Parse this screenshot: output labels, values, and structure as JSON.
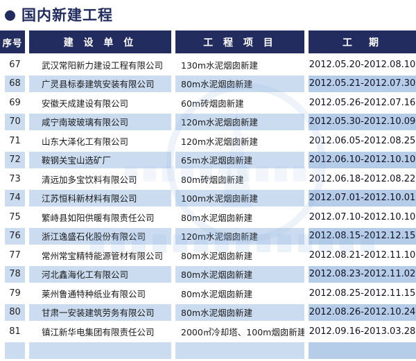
{
  "page": {
    "title": "国内新建工程"
  },
  "table": {
    "headers": [
      "序号",
      "建 设 单 位",
      "工 程 项 目",
      "工　期"
    ],
    "rows": [
      {
        "no": "67",
        "company": "武汉常阳新力建设工程有限公司",
        "project": "130m水泥烟囱新建",
        "period": "2012.05.20-2012.08.10"
      },
      {
        "no": "68",
        "company": "广灵县标泰建筑安装有限公司",
        "project": "80m水泥烟囱新建",
        "period": "2012.05.21-2012.07.30"
      },
      {
        "no": "69",
        "company": "安徽天成建设有限公司",
        "project": "60m砖烟囱新建",
        "period": "2012.05.26-2012.07.16"
      },
      {
        "no": "70",
        "company": "咸宁南玻玻璃有限公司",
        "project": "120m水泥烟囱新建",
        "period": "2012.05.30-2012.10.09"
      },
      {
        "no": "71",
        "company": "山东大泽化工有限公司",
        "project": "120m水泥烟囱新建",
        "period": "2012.06.05-2012.08.25"
      },
      {
        "no": "72",
        "company": "鞍钢关宝山选矿厂",
        "project": "65m水泥烟囱新建",
        "period": "2012.06.10-2012.10.10"
      },
      {
        "no": "73",
        "company": "清远加多宝饮料有限公司",
        "project": "80m砖烟囱新建",
        "period": "2012.06.18-2012.08.22"
      },
      {
        "no": "74",
        "company": "江苏恒科新材料有限公司",
        "project": "100m水泥烟囱新建",
        "period": "2012.07.01-2012.10.01"
      },
      {
        "no": "75",
        "company": "繁峙县如阳供暖有限责任公司",
        "project": "80m水泥烟囱新建",
        "period": "2012.07.10-2012.10.10"
      },
      {
        "no": "76",
        "company": "浙江逸盛石化股份有限公司",
        "project": "120m水泥烟囱新建",
        "period": "2012.08.15-2012.12.15"
      },
      {
        "no": "77",
        "company": "常州常宝精特能源管材有限公司",
        "project": "80m水泥烟囱新建",
        "period": "2012.08.21-2012.11.10"
      },
      {
        "no": "78",
        "company": "河北鑫海化工有限公司",
        "project": "80m水泥烟囱新建",
        "period": "2012.08.23-2012.11.02"
      },
      {
        "no": "79",
        "company": "莱州鲁通特种纸业有限公司",
        "project": "80m水泥烟囱新建",
        "period": "2012.08.25-2012.11.15"
      },
      {
        "no": "80",
        "company": "甘肃一安装建筑劳务有限公司",
        "project": "80m水泥烟囱新建",
        "period": "2012.08.26-2012.10.24"
      },
      {
        "no": "81",
        "company": "镇江新华电集团有限责任公司",
        "project": "2000㎡冷却塔、100m烟囱新建",
        "period": "2012.09.16-2013.03.28"
      }
    ]
  },
  "colors": {
    "navy": "#222c5e",
    "stripe": "#cbdcf1",
    "stripe_date": "#b6cde9",
    "text": "#1a1a1a"
  }
}
